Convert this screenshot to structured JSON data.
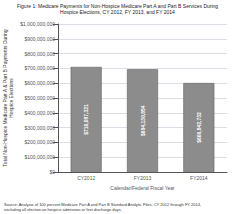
{
  "chart_data": {
    "type": "bar",
    "title": "Figure 1: Medicare Payments for Non-Hospice Medicare Part A and Part B Services During\nHospice Elections, CY 2012, FY 2013, and FY 2014",
    "xlabel": "Calendar/Federal Fiscal Year",
    "ylabel": "Total Non-Hospice Medicare Part A & Part B Payments During\nHospice Elections",
    "annotations": [
      "Source: Analysis of 100 percent Medicare Part A and Part B Standard Analytic Files, CY 2012 through FY 2014,\nexcluding all election on hospice admission or first discharge days."
    ],
    "categories": [
      "CY2012",
      "FY2013",
      "FY2014"
    ],
    "values": [
      710087321,
      694130854,
      600842732
    ],
    "value_labels": [
      "$710,087,321",
      "$694,130,854",
      "$600,842,732"
    ],
    "data_labels": true,
    "color": "#8c8c8c",
    "ylim": [
      0,
      1000000000
    ],
    "yticks": [
      {
        "value": 0,
        "label": "$0"
      },
      {
        "value": 100000000,
        "label": "$100,000,000"
      },
      {
        "value": 200000000,
        "label": "$200,000,000"
      },
      {
        "value": 300000000,
        "label": "$300,000,000"
      },
      {
        "value": 400000000,
        "label": "$400,000,000"
      },
      {
        "value": 500000000,
        "label": "$500,000,000"
      },
      {
        "value": 600000000,
        "label": "$600,000,000"
      },
      {
        "value": 700000000,
        "label": "$700,000,000"
      },
      {
        "value": 800000000,
        "label": "$800,000,000"
      },
      {
        "value": 900000000,
        "label": "$900,000,000"
      },
      {
        "value": 1000000000,
        "label": "$1,000,000,000"
      }
    ],
    "grid": true
  }
}
